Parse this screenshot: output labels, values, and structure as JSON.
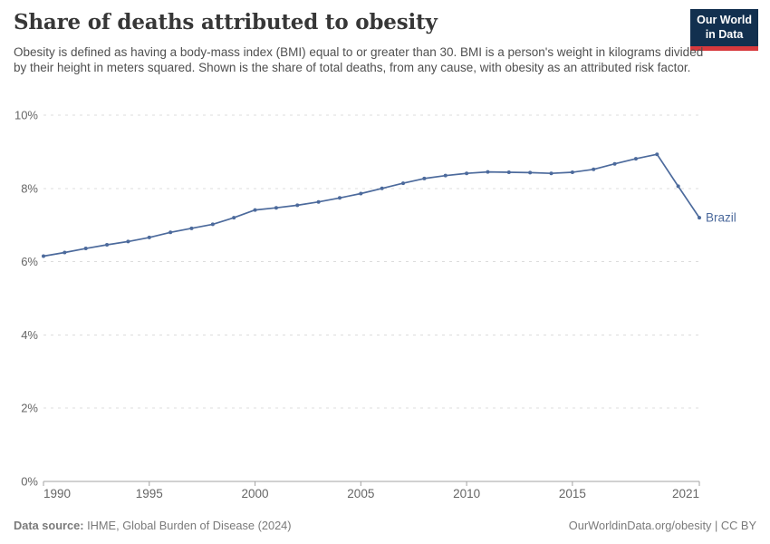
{
  "header": {
    "title": "Share of deaths attributed to obesity",
    "subtitle": "Obesity is defined as having a body-mass index (BMI) equal to or greater than 30. BMI is a person's weight in kilograms divided by their height in meters squared. Shown is the share of total deaths, from any cause, with obesity as an attributed risk factor.",
    "logo": {
      "line1": "Our World",
      "line2": "in Data"
    }
  },
  "footer": {
    "source_label": "Data source:",
    "source_text": " IHME, Global Burden of Disease (2024)",
    "credit": "OurWorldinData.org/obesity | CC BY"
  },
  "colors": {
    "line": "#4c6a9c",
    "entity_label": "#3d5a8f",
    "grid": "#dcdcdc",
    "axis": "#a3a3a3",
    "tick_text": "#666666",
    "logo_bg": "#12304f",
    "logo_red": "#d7393d"
  },
  "chart_data": {
    "type": "line",
    "title": "Share of deaths attributed to obesity",
    "xlabel": "",
    "ylabel": "",
    "xlim": [
      1990,
      2021
    ],
    "ylim": [
      0,
      10
    ],
    "grid": "horizontal-dashed",
    "legend_position": "end-of-line-label",
    "x_ticks": [
      1990,
      1995,
      2000,
      2005,
      2010,
      2015,
      2021
    ],
    "y_ticks": [
      {
        "value": 0,
        "label": "0%"
      },
      {
        "value": 2,
        "label": "2%"
      },
      {
        "value": 4,
        "label": "4%"
      },
      {
        "value": 6,
        "label": "6%"
      },
      {
        "value": 8,
        "label": "8%"
      },
      {
        "value": 10,
        "label": "10%"
      }
    ],
    "series": [
      {
        "name": "Brazil",
        "color": "#4c6a9c",
        "x": [
          1990,
          1991,
          1992,
          1993,
          1994,
          1995,
          1996,
          1997,
          1998,
          1999,
          2000,
          2001,
          2002,
          2003,
          2004,
          2005,
          2006,
          2007,
          2008,
          2009,
          2010,
          2011,
          2012,
          2013,
          2014,
          2015,
          2016,
          2017,
          2018,
          2019,
          2020,
          2021
        ],
        "values": [
          6.15,
          6.25,
          6.36,
          6.46,
          6.55,
          6.66,
          6.8,
          6.91,
          7.02,
          7.2,
          7.41,
          7.47,
          7.54,
          7.63,
          7.74,
          7.86,
          8.0,
          8.14,
          8.27,
          8.35,
          8.41,
          8.45,
          8.44,
          8.43,
          8.41,
          8.44,
          8.52,
          8.67,
          8.81,
          8.93,
          8.06,
          7.2
        ]
      }
    ]
  }
}
